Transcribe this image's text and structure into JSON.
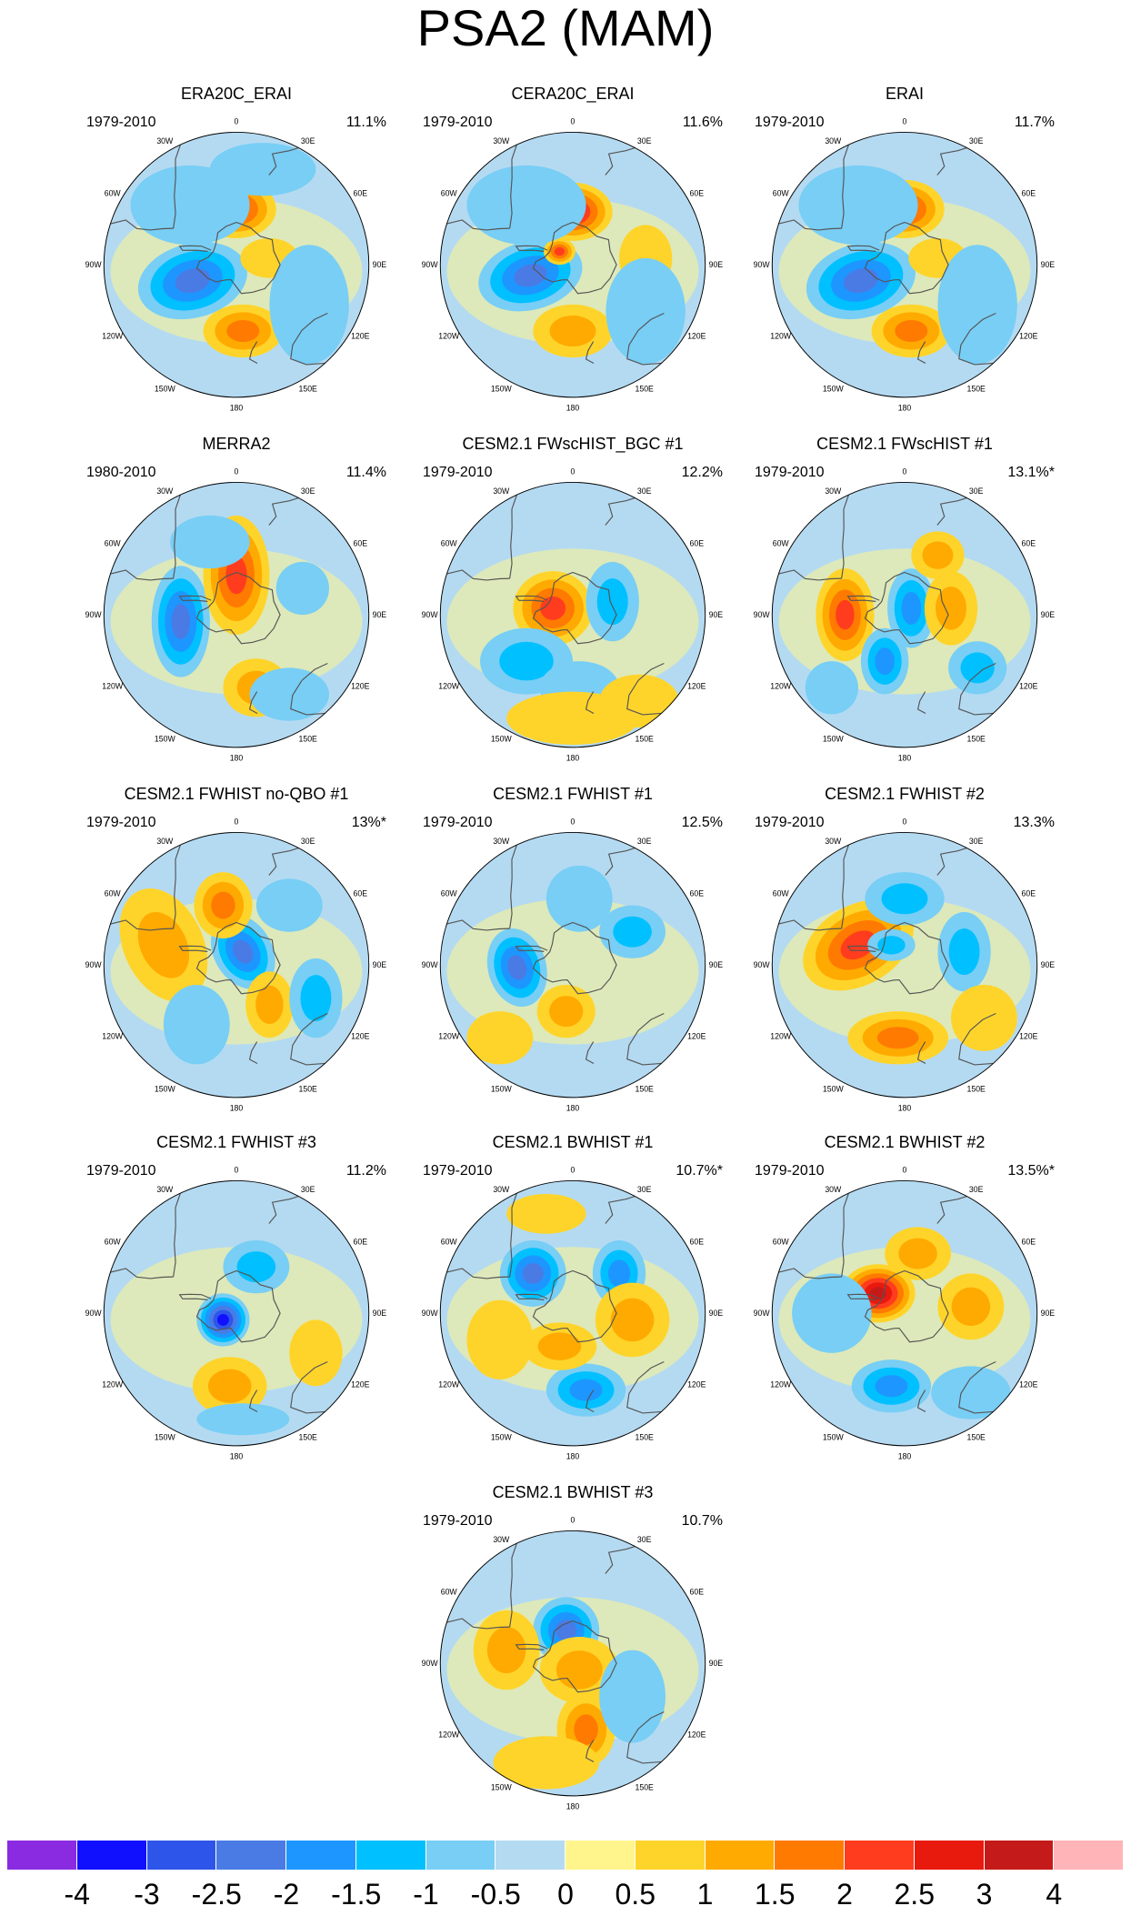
{
  "title": "PSA2 (MAM)",
  "panels": [
    {
      "name": "ERA20C_ERAI",
      "years": "1979-2010",
      "pct": "11.1%",
      "blobs": [
        [
          -0.33,
          -0.12,
          0.42,
          0.28,
          -15,
          -2.2
        ],
        [
          0.0,
          0.42,
          0.3,
          0.22,
          0,
          2.3
        ],
        [
          0.05,
          -0.5,
          0.3,
          0.2,
          0,
          1.6
        ],
        [
          0.25,
          0.05,
          0.22,
          0.15,
          0,
          0.8
        ],
        [
          -0.35,
          0.45,
          0.45,
          0.3,
          0,
          -0.7
        ],
        [
          0.55,
          -0.3,
          0.3,
          0.45,
          0,
          -0.6
        ],
        [
          0.2,
          0.72,
          0.4,
          0.2,
          0,
          -0.5
        ]
      ]
    },
    {
      "name": "CERA20C_ERAI",
      "years": "1979-2010",
      "pct": "11.6%",
      "blobs": [
        [
          -0.32,
          -0.08,
          0.4,
          0.26,
          -15,
          -2.3
        ],
        [
          0.0,
          0.4,
          0.3,
          0.22,
          0,
          2.5
        ],
        [
          -0.1,
          0.1,
          0.12,
          0.1,
          0,
          2.3
        ],
        [
          0.0,
          -0.5,
          0.3,
          0.2,
          0,
          1.3
        ],
        [
          0.55,
          0.05,
          0.2,
          0.25,
          0,
          0.8
        ],
        [
          -0.35,
          0.45,
          0.45,
          0.3,
          0,
          -0.7
        ],
        [
          0.55,
          -0.35,
          0.3,
          0.4,
          0,
          -0.6
        ]
      ]
    },
    {
      "name": "ERAI",
      "years": "1979-2010",
      "pct": "11.7%",
      "blobs": [
        [
          -0.33,
          -0.12,
          0.42,
          0.28,
          -15,
          -2.2
        ],
        [
          0.0,
          0.42,
          0.3,
          0.22,
          0,
          2.3
        ],
        [
          0.05,
          -0.5,
          0.3,
          0.2,
          0,
          1.5
        ],
        [
          0.25,
          0.05,
          0.22,
          0.15,
          0,
          0.8
        ],
        [
          -0.35,
          0.45,
          0.45,
          0.3,
          0,
          -0.7
        ],
        [
          0.55,
          -0.3,
          0.3,
          0.45,
          0,
          -0.6
        ]
      ]
    },
    {
      "name": "MERRA2",
      "years": "1980-2010",
      "pct": "11.4%",
      "blobs": [
        [
          -0.42,
          -0.05,
          0.22,
          0.42,
          0,
          -2.2
        ],
        [
          0.0,
          0.3,
          0.25,
          0.45,
          0,
          2.3
        ],
        [
          0.15,
          -0.55,
          0.25,
          0.22,
          0,
          1.3
        ],
        [
          0.5,
          0.2,
          0.2,
          0.2,
          0,
          -0.8
        ],
        [
          -0.2,
          0.55,
          0.3,
          0.2,
          0,
          -0.6
        ],
        [
          0.4,
          -0.6,
          0.3,
          0.2,
          0,
          -0.5
        ]
      ]
    },
    {
      "name": "CESM2.1 FWscHIST_BGC #1",
      "years": "1979-2010",
      "pct": "12.2%",
      "blobs": [
        [
          -0.15,
          0.05,
          0.3,
          0.28,
          0,
          2.2
        ],
        [
          -0.35,
          -0.35,
          0.35,
          0.25,
          0,
          -1.2
        ],
        [
          0.3,
          0.1,
          0.2,
          0.3,
          0,
          -1.3
        ],
        [
          0.05,
          -0.55,
          0.3,
          0.2,
          0,
          -0.8
        ],
        [
          0.0,
          -0.78,
          0.5,
          0.2,
          0,
          0.6
        ],
        [
          0.5,
          -0.65,
          0.3,
          0.2,
          0,
          0.5
        ]
      ]
    },
    {
      "name": "CESM2.1 FWscHIST #1",
      "years": "1979-2010",
      "pct": "13.1%*",
      "blobs": [
        [
          -0.45,
          0.0,
          0.22,
          0.35,
          0,
          2.3
        ],
        [
          -0.15,
          -0.35,
          0.18,
          0.25,
          0,
          -1.6
        ],
        [
          0.05,
          0.05,
          0.18,
          0.3,
          0,
          -1.7
        ],
        [
          0.25,
          0.45,
          0.2,
          0.18,
          0,
          1.3
        ],
        [
          0.35,
          0.05,
          0.2,
          0.28,
          0,
          1.3
        ],
        [
          0.55,
          -0.4,
          0.22,
          0.2,
          0,
          -1.0
        ],
        [
          -0.55,
          -0.55,
          0.2,
          0.2,
          0,
          -0.6
        ]
      ]
    },
    {
      "name": "CESM2.1 FWHIST no-QBO #1",
      "years": "1979-2010",
      "pct": "13%*",
      "blobs": [
        [
          0.05,
          0.1,
          0.22,
          0.3,
          -30,
          -2.4
        ],
        [
          -0.55,
          0.15,
          0.3,
          0.45,
          -25,
          1.3
        ],
        [
          -0.1,
          0.45,
          0.22,
          0.25,
          0,
          1.6
        ],
        [
          0.25,
          -0.3,
          0.18,
          0.25,
          0,
          1.2
        ],
        [
          -0.3,
          -0.45,
          0.25,
          0.3,
          0,
          -0.8
        ],
        [
          0.6,
          -0.25,
          0.2,
          0.3,
          0,
          -1.0
        ],
        [
          0.4,
          0.45,
          0.25,
          0.2,
          0,
          -0.6
        ]
      ]
    },
    {
      "name": "CESM2.1 FWHIST #1",
      "years": "1979-2010",
      "pct": "12.5%",
      "blobs": [
        [
          -0.42,
          -0.02,
          0.22,
          0.3,
          -15,
          -2.3
        ],
        [
          -0.05,
          -0.35,
          0.22,
          0.2,
          0,
          1.3
        ],
        [
          0.45,
          0.25,
          0.25,
          0.2,
          0,
          -1.2
        ],
        [
          0.05,
          0.5,
          0.25,
          0.25,
          0,
          -0.9
        ],
        [
          -0.55,
          -0.55,
          0.25,
          0.2,
          0,
          0.6
        ]
      ]
    },
    {
      "name": "CESM2.1 FWHIST #2",
      "years": "1979-2010",
      "pct": "13.3%",
      "blobs": [
        [
          -0.35,
          0.15,
          0.45,
          0.3,
          -30,
          2.2
        ],
        [
          -0.05,
          -0.55,
          0.38,
          0.2,
          0,
          1.8
        ],
        [
          -0.1,
          0.15,
          0.18,
          0.12,
          0,
          -1.3
        ],
        [
          0.0,
          0.5,
          0.3,
          0.2,
          0,
          -1.0
        ],
        [
          0.45,
          0.1,
          0.2,
          0.3,
          0,
          -1.0
        ],
        [
          0.6,
          -0.4,
          0.25,
          0.25,
          0,
          0.6
        ]
      ]
    },
    {
      "name": "CESM2.1 FWHIST #3",
      "years": "1979-2010",
      "pct": "11.2%",
      "blobs": [
        [
          -0.1,
          -0.05,
          0.2,
          0.2,
          0,
          -3.0
        ],
        [
          0.15,
          0.35,
          0.25,
          0.2,
          0,
          -1.2
        ],
        [
          -0.05,
          -0.55,
          0.28,
          0.22,
          0,
          1.1
        ],
        [
          0.05,
          -0.8,
          0.35,
          0.12,
          0,
          -0.6
        ],
        [
          0.6,
          -0.3,
          0.2,
          0.25,
          0,
          0.6
        ]
      ]
    },
    {
      "name": "CESM2.1 BWHIST #1",
      "years": "1979-2010",
      "pct": "10.7%*",
      "blobs": [
        [
          -0.3,
          0.3,
          0.25,
          0.25,
          -20,
          -2.2
        ],
        [
          0.35,
          0.3,
          0.2,
          0.25,
          0,
          -1.5
        ],
        [
          0.1,
          -0.58,
          0.3,
          0.2,
          0,
          -1.6
        ],
        [
          0.45,
          -0.05,
          0.28,
          0.28,
          0,
          1.1
        ],
        [
          -0.1,
          -0.25,
          0.28,
          0.18,
          0,
          1.0
        ],
        [
          -0.55,
          -0.2,
          0.25,
          0.3,
          0,
          0.8
        ],
        [
          -0.2,
          0.75,
          0.3,
          0.15,
          0,
          0.6
        ]
      ]
    },
    {
      "name": "CESM2.1 BWHIST #2",
      "years": "1979-2010",
      "pct": "13.5%*",
      "blobs": [
        [
          -0.2,
          0.15,
          0.28,
          0.22,
          0,
          3.0
        ],
        [
          -0.1,
          -0.55,
          0.3,
          0.2,
          0,
          -1.8
        ],
        [
          0.1,
          0.45,
          0.25,
          0.2,
          0,
          1.0
        ],
        [
          -0.55,
          0.0,
          0.3,
          0.3,
          0,
          -0.7
        ],
        [
          0.5,
          0.05,
          0.25,
          0.25,
          0,
          1.0
        ],
        [
          0.5,
          -0.6,
          0.3,
          0.2,
          0,
          -0.6
        ]
      ]
    },
    {
      "name": "CESM2.1 BWHIST #3",
      "years": "1979-2010",
      "pct": "10.7%",
      "blobs": [
        [
          -0.05,
          0.25,
          0.25,
          0.25,
          0,
          -2.1
        ],
        [
          -0.5,
          0.1,
          0.25,
          0.3,
          0,
          1.3
        ],
        [
          0.1,
          -0.5,
          0.22,
          0.28,
          0,
          1.8
        ],
        [
          0.05,
          -0.05,
          0.3,
          0.25,
          0,
          1.2
        ],
        [
          0.45,
          -0.25,
          0.25,
          0.35,
          0,
          -0.7
        ],
        [
          -0.2,
          -0.75,
          0.4,
          0.2,
          0,
          0.6
        ]
      ]
    }
  ],
  "lon_labels": [
    "0",
    "30E",
    "60E",
    "90E",
    "120E",
    "150E",
    "180",
    "150W",
    "120W",
    "90W",
    "60W",
    "30W"
  ],
  "colorbar": {
    "colors": [
      "#8a2be2",
      "#1010ff",
      "#2e55ea",
      "#4a7be5",
      "#1d96ff",
      "#00c0ff",
      "#78cef5",
      "#b4daf2",
      "#fff58c",
      "#ffd42a",
      "#ffaa00",
      "#ff7a00",
      "#ff3c1e",
      "#e81a0e",
      "#c51a1a",
      "#ffb4b8"
    ],
    "labels": [
      "-4",
      "-3",
      "-2.5",
      "-2",
      "-1.5",
      "-1",
      "-0.5",
      "0",
      "0.5",
      "1",
      "1.5",
      "2",
      "2.5",
      "3",
      "4"
    ],
    "levels": [
      -4,
      -3,
      -2.5,
      -2,
      -1.5,
      -1,
      -0.5,
      0,
      0.5,
      1,
      1.5,
      2,
      2.5,
      3,
      4
    ]
  }
}
